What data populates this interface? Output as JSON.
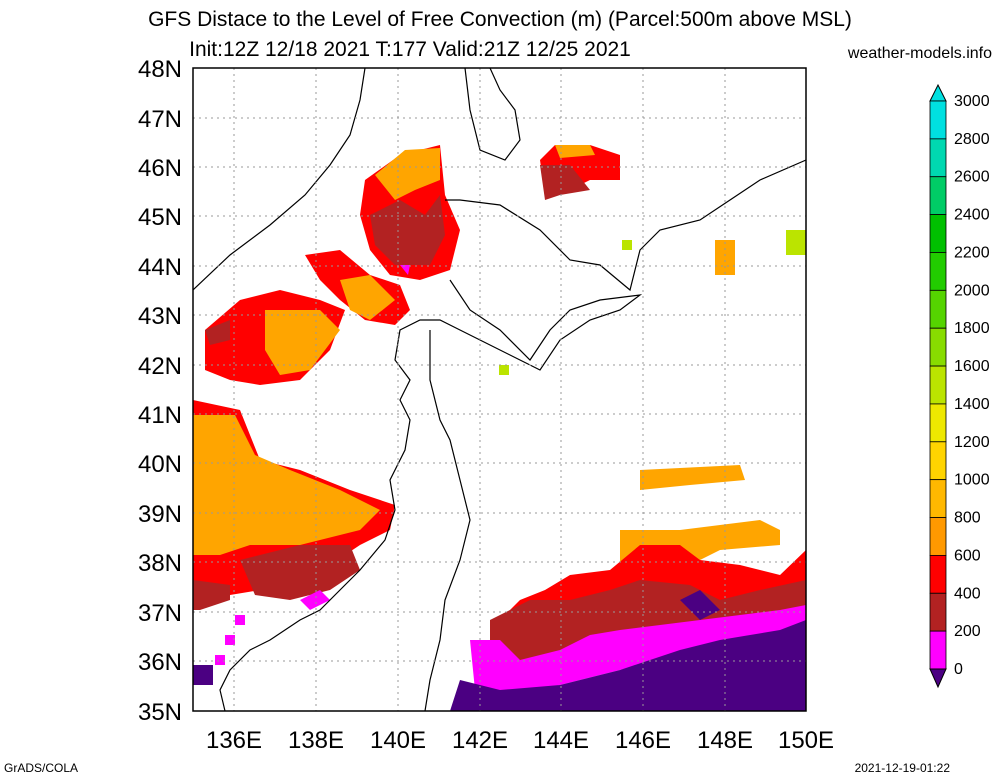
{
  "header": {
    "title_line1": "GFS Distace to the Level of Free Convection (m) (Parcel:500m above MSL)",
    "title_line2": "Init:12Z 12/18 2021 T:177 Valid:21Z 12/25 2021",
    "site": "weather-models.info"
  },
  "map": {
    "lat_labels": [
      "48N",
      "47N",
      "46N",
      "45N",
      "44N",
      "43N",
      "42N",
      "41N",
      "40N",
      "39N",
      "38N",
      "37N",
      "36N",
      "35N"
    ],
    "lon_labels": [
      "136E",
      "138E",
      "140E",
      "142E",
      "144E",
      "146E",
      "148E",
      "150E"
    ]
  },
  "colorbar": {
    "labels": [
      "3000",
      "2800",
      "2600",
      "2400",
      "2200",
      "2000",
      "1800",
      "1600",
      "1400",
      "1200",
      "1000",
      "800",
      "600",
      "400",
      "200",
      "0"
    ],
    "colors": [
      "#00e0e0",
      "#00d8b0",
      "#00cc66",
      "#00c000",
      "#22cc00",
      "#55d400",
      "#88dc00",
      "#bbe400",
      "#eee800",
      "#ffd400",
      "#ffb800",
      "#ff9900",
      "#ff0000",
      "#b22222",
      "#ff00ff",
      "#4b0082"
    ]
  },
  "footer": {
    "left": "GrADS/COLA",
    "right": "2021-12-19-01:22"
  }
}
